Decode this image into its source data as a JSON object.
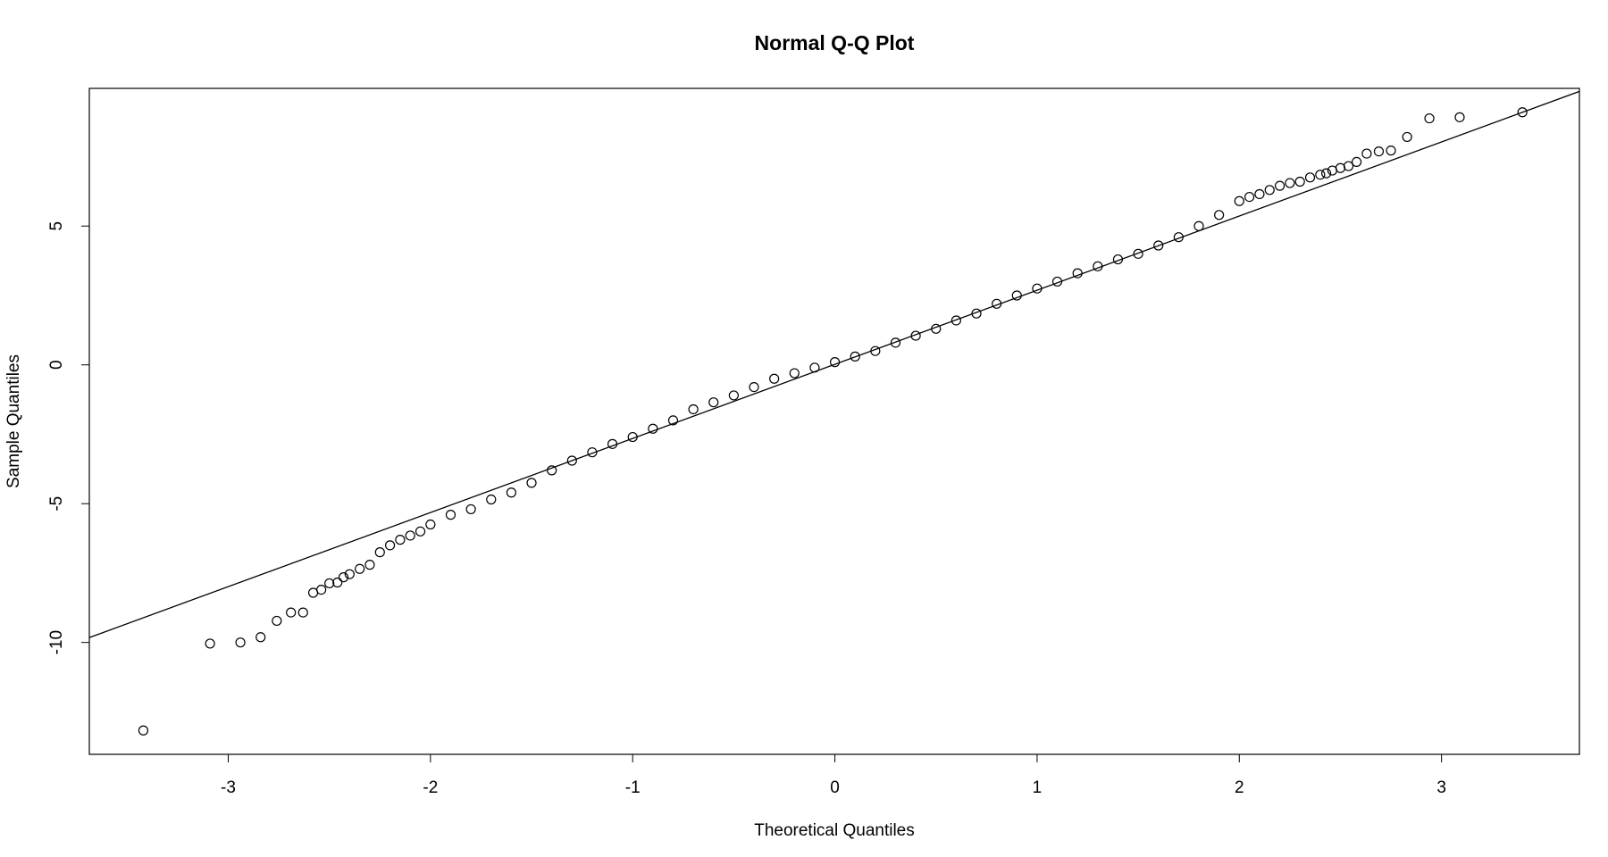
{
  "chart_data": {
    "type": "qq",
    "title": "Normal Q-Q Plot",
    "x_label": "Theoretical Quantiles",
    "y_label": "Sample Quantiles",
    "xlim": [
      -3.687,
      3.682
    ],
    "ylim": [
      -14.03,
      9.96
    ],
    "xticks": [
      -3,
      -2,
      -1,
      0,
      1,
      2,
      3
    ],
    "yticks": [
      -10,
      -5,
      0,
      5
    ],
    "color": "#000000",
    "qq_line": {
      "slope": 2.67,
      "intercept": 0.02
    },
    "x": [
      -3.42,
      -3.09,
      -2.94,
      -2.84,
      -2.76,
      -2.69,
      -2.63,
      -2.58,
      -2.54,
      -2.5,
      -2.46,
      -2.43,
      -2.4,
      -2.35,
      -2.3,
      -2.25,
      -2.2,
      -2.15,
      -2.1,
      -2.05,
      -2.0,
      -1.9,
      -1.8,
      -1.7,
      -1.6,
      -1.5,
      -1.4,
      -1.3,
      -1.2,
      -1.1,
      -1.0,
      -0.9,
      -0.8,
      -0.7,
      -0.6,
      -0.5,
      -0.4,
      -0.3,
      -0.2,
      -0.1,
      0,
      0.1,
      0.2,
      0.3,
      0.4,
      0.5,
      0.6,
      0.7,
      0.8,
      0.9,
      1.0,
      1.1,
      1.2,
      1.3,
      1.4,
      1.5,
      1.6,
      1.7,
      1.8,
      1.9,
      2.0,
      2.05,
      2.1,
      2.15,
      2.2,
      2.25,
      2.3,
      2.35,
      2.4,
      2.43,
      2.46,
      2.5,
      2.54,
      2.58,
      2.63,
      2.69,
      2.75,
      2.83,
      2.94,
      3.09,
      3.4
    ],
    "y": [
      -13.17,
      -10.04,
      -10.0,
      -9.81,
      -9.22,
      -8.92,
      -8.92,
      -8.21,
      -8.1,
      -7.87,
      -7.84,
      -7.65,
      -7.54,
      -7.35,
      -7.2,
      -6.75,
      -6.5,
      -6.3,
      -6.15,
      -6.0,
      -5.75,
      -5.4,
      -5.2,
      -4.85,
      -4.6,
      -4.25,
      -3.8,
      -3.45,
      -3.15,
      -2.85,
      -2.6,
      -2.3,
      -2.0,
      -1.6,
      -1.35,
      -1.1,
      -0.8,
      -0.5,
      -0.3,
      -0.1,
      0.1,
      0.3,
      0.5,
      0.8,
      1.05,
      1.3,
      1.6,
      1.85,
      2.2,
      2.5,
      2.75,
      3.0,
      3.3,
      3.55,
      3.8,
      4.0,
      4.3,
      4.6,
      5.0,
      5.4,
      5.9,
      6.05,
      6.15,
      6.3,
      6.45,
      6.55,
      6.6,
      6.75,
      6.85,
      6.9,
      7.0,
      7.09,
      7.16,
      7.31,
      7.61,
      7.69,
      7.72,
      8.21,
      8.88,
      8.92,
      9.1
    ]
  }
}
